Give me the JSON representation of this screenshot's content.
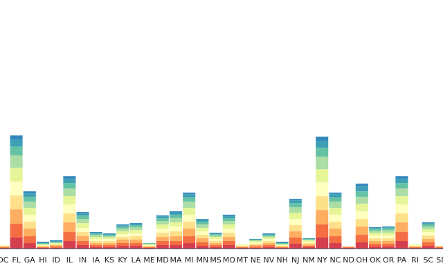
{
  "chart_data": {
    "type": "stacked_bar",
    "categories": [
      "DC",
      "FL",
      "GA",
      "HI",
      "ID",
      "IL",
      "IN",
      "IA",
      "KS",
      "KY",
      "LA",
      "ME",
      "MD",
      "MA",
      "MI",
      "MN",
      "MS",
      "MO",
      "MT",
      "NE",
      "NV",
      "NH",
      "NJ",
      "NM",
      "NY",
      "NC",
      "ND",
      "OH",
      "OK",
      "OR",
      "PA",
      "RI",
      "SC",
      "SD"
    ],
    "ylim": [
      0,
      360
    ],
    "series": [
      {
        "color": "#d53e4f",
        "values": [
          1,
          16,
          8,
          1,
          1,
          11,
          5,
          2,
          2,
          4,
          4,
          1,
          5,
          5,
          8,
          4,
          2,
          5,
          1,
          1,
          2,
          1,
          7,
          2,
          16,
          8,
          1,
          9,
          3,
          3,
          11,
          1,
          4,
          1
        ]
      },
      {
        "color": "#f46d43",
        "values": [
          1,
          20,
          10,
          1,
          2,
          13,
          6,
          3,
          3,
          4,
          4,
          1,
          6,
          6,
          10,
          5,
          3,
          6,
          1,
          2,
          3,
          1,
          9,
          2,
          19,
          10,
          1,
          11,
          4,
          4,
          13,
          1,
          5,
          1
        ]
      },
      {
        "color": "#fdae61",
        "values": [
          1,
          21,
          11,
          1,
          2,
          14,
          7,
          3,
          3,
          5,
          5,
          1,
          6,
          7,
          11,
          6,
          3,
          6,
          1,
          2,
          3,
          1,
          9,
          2,
          21,
          11,
          1,
          12,
          4,
          4,
          14,
          1,
          5,
          1
        ]
      },
      {
        "color": "#fee08b",
        "values": [
          1,
          20,
          10,
          1,
          1,
          13,
          6,
          3,
          3,
          4,
          5,
          1,
          6,
          7,
          10,
          5,
          3,
          6,
          1,
          2,
          3,
          1,
          9,
          2,
          20,
          10,
          0,
          11,
          4,
          4,
          13,
          1,
          5,
          1
        ]
      },
      {
        "color": "#ffffbf",
        "values": [
          1,
          20,
          10,
          1,
          1,
          13,
          6,
          3,
          3,
          4,
          4,
          1,
          6,
          7,
          10,
          5,
          3,
          6,
          1,
          2,
          3,
          1,
          9,
          2,
          20,
          10,
          0,
          11,
          4,
          4,
          13,
          1,
          5,
          0
        ]
      },
      {
        "color": "#e6f598",
        "values": [
          0,
          20,
          10,
          1,
          1,
          12,
          7,
          3,
          2,
          4,
          5,
          1,
          6,
          6,
          10,
          5,
          3,
          6,
          1,
          2,
          2,
          1,
          9,
          2,
          19,
          10,
          0,
          11,
          4,
          4,
          12,
          1,
          4,
          0
        ]
      },
      {
        "color": "#abdda4",
        "values": [
          0,
          18,
          9,
          1,
          1,
          11,
          6,
          3,
          2,
          4,
          4,
          1,
          5,
          6,
          9,
          5,
          2,
          5,
          0,
          1,
          2,
          1,
          8,
          1,
          18,
          9,
          0,
          10,
          3,
          4,
          11,
          0,
          4,
          0
        ]
      },
      {
        "color": "#66c2a5",
        "values": [
          0,
          13,
          7,
          1,
          1,
          8,
          5,
          2,
          2,
          3,
          3,
          1,
          4,
          5,
          6,
          4,
          2,
          4,
          0,
          1,
          2,
          1,
          6,
          1,
          13,
          6,
          0,
          8,
          3,
          3,
          8,
          0,
          3,
          0
        ]
      },
      {
        "color": "#3d9fb5",
        "values": [
          0,
          10,
          5,
          1,
          1,
          6,
          3,
          1,
          1,
          2,
          2,
          0,
          3,
          3,
          5,
          3,
          1,
          3,
          0,
          1,
          1,
          1,
          4,
          1,
          10,
          5,
          0,
          7,
          1,
          1,
          6,
          0,
          2,
          0
        ]
      },
      {
        "color": "#3288bd",
        "values": [
          0,
          6,
          3,
          1,
          1,
          4,
          2,
          1,
          1,
          1,
          1,
          0,
          1,
          2,
          2,
          1,
          1,
          2,
          0,
          0,
          1,
          1,
          2,
          0,
          6,
          2,
          0,
          4,
          1,
          1,
          4,
          0,
          1,
          0
        ]
      }
    ]
  }
}
